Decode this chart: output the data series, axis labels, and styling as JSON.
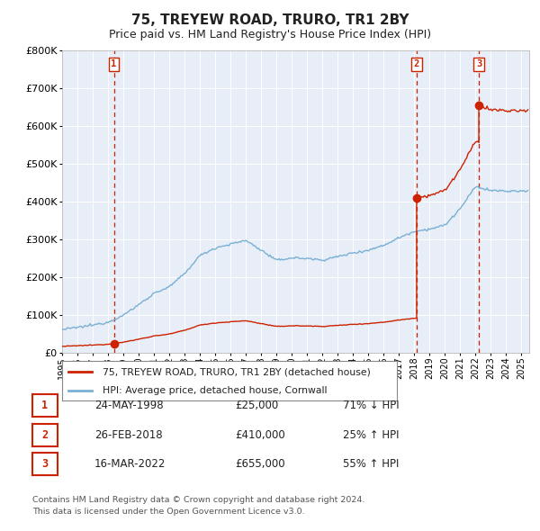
{
  "title": "75, TREYEW ROAD, TRURO, TR1 2BY",
  "subtitle": "Price paid vs. HM Land Registry's House Price Index (HPI)",
  "background_color": "#e8eef7",
  "plot_bg": "#e8eef7",
  "sales": [
    {
      "label": "1",
      "date": "24-MAY-1998",
      "price": 25000,
      "pct": "71% ↓ HPI",
      "year": 1998.38
    },
    {
      "label": "2",
      "date": "26-FEB-2018",
      "price": 410000,
      "pct": "25% ↑ HPI",
      "year": 2018.15
    },
    {
      "label": "3",
      "date": "16-MAR-2022",
      "price": 655000,
      "pct": "55% ↑ HPI",
      "year": 2022.21
    }
  ],
  "footnote1": "Contains HM Land Registry data © Crown copyright and database right 2024.",
  "footnote2": "This data is licensed under the Open Government Licence v3.0.",
  "legend_property": "75, TREYEW ROAD, TRURO, TR1 2BY (detached house)",
  "legend_hpi": "HPI: Average price, detached house, Cornwall",
  "ylim": [
    0,
    800000
  ],
  "xlim_start": 1995,
  "xlim_end": 2025.5,
  "red_color": "#cc2200",
  "blue_color": "#7ab0d4",
  "hpi_anchors_t": [
    1995,
    1996,
    1997,
    1998,
    1999,
    2000,
    2001,
    2002,
    2003,
    2004,
    2005,
    2006,
    2007,
    2008,
    2009,
    2010,
    2011,
    2012,
    2013,
    2014,
    2015,
    2016,
    2017,
    2018,
    2019,
    2020,
    2021,
    2022,
    2023,
    2024,
    2025
  ],
  "hpi_anchors_v": [
    62000,
    68000,
    74000,
    82000,
    100000,
    128000,
    158000,
    175000,
    210000,
    258000,
    278000,
    288000,
    298000,
    272000,
    245000,
    252000,
    250000,
    246000,
    255000,
    265000,
    272000,
    285000,
    305000,
    322000,
    328000,
    338000,
    382000,
    440000,
    430000,
    428000,
    428000
  ]
}
